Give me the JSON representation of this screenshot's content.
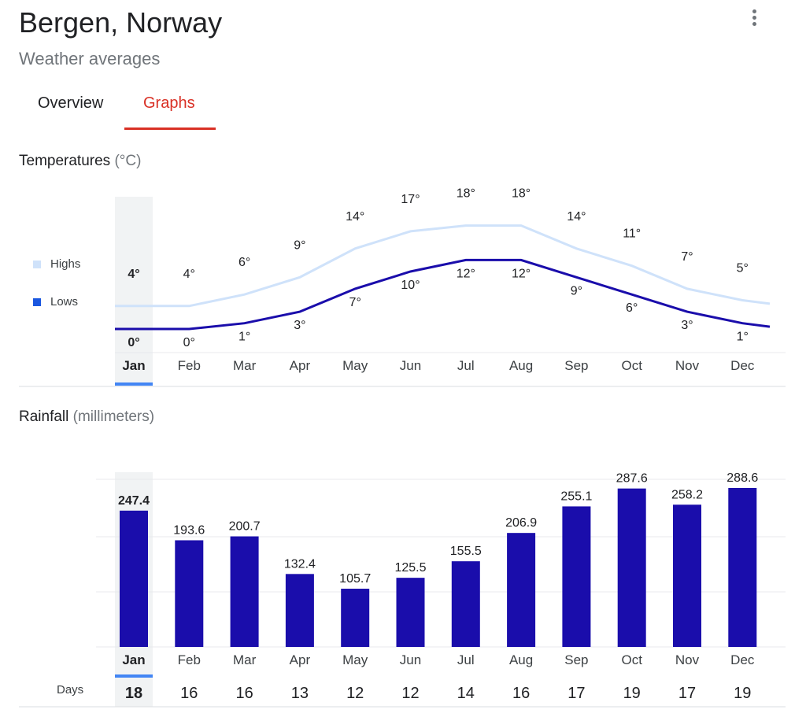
{
  "header": {
    "title": "Bergen, Norway",
    "subtitle": "Weather averages",
    "more_icon": "more-vert-icon"
  },
  "tabs": [
    {
      "label": "Overview"
    },
    {
      "label": "Graphs",
      "selected": true
    }
  ],
  "temperature": {
    "title": "Temperatures",
    "unit": "(°C)",
    "legend": {
      "highs": "Highs",
      "lows": "Lows"
    }
  },
  "rainfall": {
    "title": "Rainfall",
    "unit": "(millimeters)",
    "days_label": "Days"
  },
  "colors": {
    "highs": "#cfe2fa",
    "lows": "#1a0dab",
    "bars": "#1a0dab",
    "selected_tab": "#d93025",
    "selected_month": "#4285f4"
  },
  "selected_month_index": 0,
  "chart_data": [
    {
      "type": "line",
      "title": "Temperatures",
      "categories": [
        "Jan",
        "Feb",
        "Mar",
        "Apr",
        "May",
        "Jun",
        "Jul",
        "Aug",
        "Sep",
        "Oct",
        "Nov",
        "Dec"
      ],
      "series": [
        {
          "name": "Highs",
          "values": [
            4,
            4,
            6,
            9,
            14,
            17,
            18,
            18,
            14,
            11,
            7,
            5
          ],
          "labels": [
            "4°",
            "4°",
            "6°",
            "9°",
            "14°",
            "17°",
            "18°",
            "18°",
            "14°",
            "11°",
            "7°",
            "5°"
          ]
        },
        {
          "name": "Lows",
          "values": [
            0,
            0,
            1,
            3,
            7,
            10,
            12,
            12,
            9,
            6,
            3,
            1
          ],
          "labels": [
            "0°",
            "0°",
            "1°",
            "3°",
            "7°",
            "10°",
            "12°",
            "12°",
            "9°",
            "6°",
            "3°",
            "1°"
          ]
        }
      ],
      "ylabel": "°C",
      "legend": "left"
    },
    {
      "type": "bar",
      "title": "Rainfall",
      "categories": [
        "Jan",
        "Feb",
        "Mar",
        "Apr",
        "May",
        "Jun",
        "Jul",
        "Aug",
        "Sep",
        "Oct",
        "Nov",
        "Dec"
      ],
      "values": [
        247.4,
        193.6,
        200.7,
        132.4,
        105.7,
        125.5,
        155.5,
        206.9,
        255.1,
        287.6,
        258.2,
        288.6
      ],
      "labels": [
        "247.4",
        "193.6",
        "200.7",
        "132.4",
        "105.7",
        "125.5",
        "155.5",
        "206.9",
        "255.1",
        "287.6",
        "258.2",
        "288.6"
      ],
      "days": [
        "18",
        "16",
        "16",
        "13",
        "12",
        "12",
        "14",
        "16",
        "17",
        "19",
        "17",
        "19"
      ],
      "ylabel": "millimeters",
      "ylim": [
        0,
        300
      ],
      "grid": true
    }
  ]
}
